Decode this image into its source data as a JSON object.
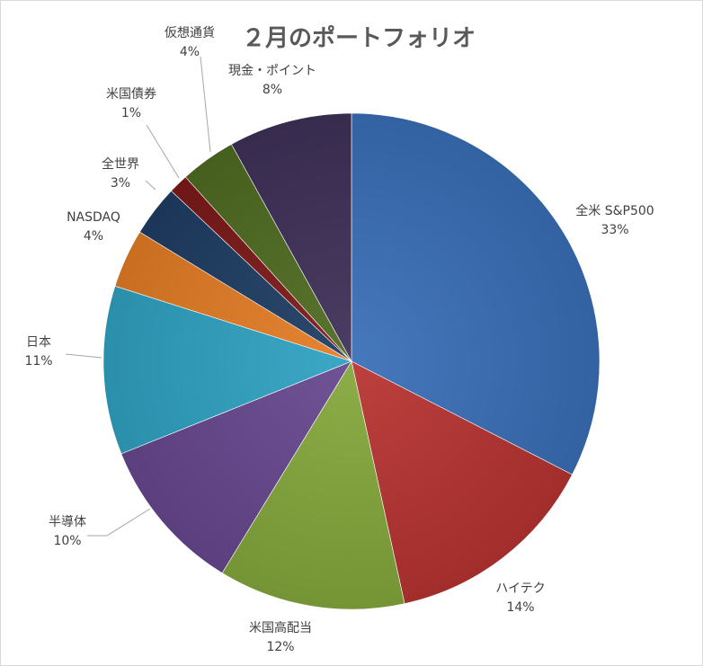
{
  "chart_data": {
    "type": "pie",
    "title": "２月のポートフォリオ",
    "start": "top",
    "direction": "clockwise",
    "legend": "none",
    "slices": [
      {
        "label": "全米 S&P500",
        "pct_label": "33%",
        "value": 33.2,
        "color": "#3a6fb8"
      },
      {
        "label": "ハイテク",
        "pct_label": "14%",
        "value": 14.3,
        "color": "#b83432"
      },
      {
        "label": "米国高配当",
        "pct_label": "12%",
        "value": 12.4,
        "color": "#85a83c"
      },
      {
        "label": "半導体",
        "pct_label": "10%",
        "value": 10.4,
        "color": "#67488f"
      },
      {
        "label": "日本",
        "pct_label": "11%",
        "value": 11.2,
        "color": "#30a2c2"
      },
      {
        "label": "NASDAQ",
        "pct_label": "4%",
        "value": 3.9,
        "color": "#e47d26"
      },
      {
        "label": "全世界",
        "pct_label": "3%",
        "value": 3.4,
        "color": "#1f3d64"
      },
      {
        "label": "米国債券",
        "pct_label": "1%",
        "value": 1.3,
        "color": "#7d1a19"
      },
      {
        "label": "仮想通貨",
        "pct_label": "4%",
        "value": 3.7,
        "color": "#4f6c22"
      },
      {
        "label": "現金・ポイント",
        "pct_label": "8%",
        "value": 8.2,
        "color": "#3f3159"
      }
    ]
  }
}
